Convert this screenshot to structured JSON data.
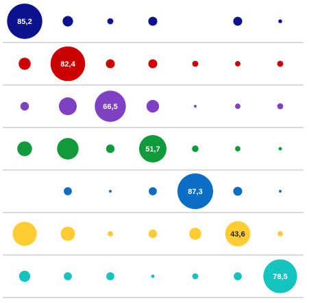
{
  "chart_data": {
    "type": "bubble-matrix",
    "rows": 7,
    "columns": 7,
    "colors": [
      "#0a128c",
      "#cc0000",
      "#8040c4",
      "#109a3c",
      "#0a6ec4",
      "#ffcc33",
      "#14c4be"
    ],
    "label_colors": [
      "#ffffff",
      "#ffffff",
      "#ffffff",
      "#ffffff",
      "#ffffff",
      "#222222",
      "#ffffff"
    ],
    "values": [
      [
        85.2,
        7.5,
        2.5,
        5.5,
        0,
        5.5,
        1.0
      ],
      [
        10.0,
        82.4,
        5.5,
        5.5,
        2.5,
        2.0,
        2.5
      ],
      [
        5.0,
        22.0,
        66.5,
        11.0,
        0.5,
        2.0,
        2.5
      ],
      [
        15.0,
        32.0,
        5.0,
        51.7,
        3.0,
        2.0,
        0.8
      ],
      [
        0,
        4.5,
        0.5,
        4.5,
        87.3,
        5.5,
        0.5
      ],
      [
        40.0,
        14.0,
        2.0,
        5.0,
        10.0,
        43.6,
        2.0
      ],
      [
        8.5,
        4.5,
        4.5,
        0.8,
        2.5,
        4.5,
        78.5
      ]
    ],
    "labels": [
      "85,2",
      "82,4",
      "66,5",
      "51,7",
      "87,3",
      "43,6",
      "78,5"
    ],
    "grid": true
  }
}
